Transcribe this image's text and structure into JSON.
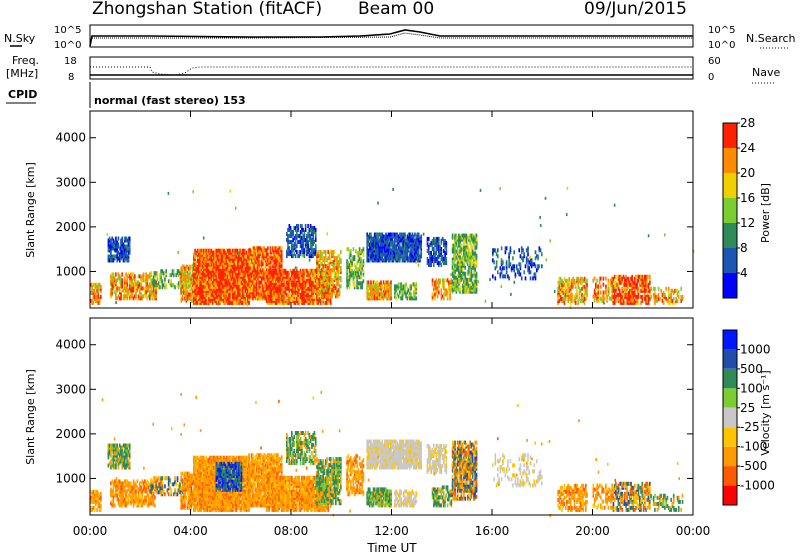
{
  "header": {
    "station": "Zhongshan Station (fitACF)",
    "beam": "Beam 00",
    "date": "09/Jun/2015"
  },
  "summary_panels": {
    "nsky_label": "N.Sky",
    "nsky_ticks": [
      "10^5",
      "10^0"
    ],
    "nsearch_label": "N.Search",
    "nsearch_ticks": [
      "10^5",
      "10^0"
    ],
    "freq_label_1": "Freq.",
    "freq_label_2": "[MHz]",
    "freq_ticks": [
      "18",
      "8"
    ],
    "nave_label": "Nave",
    "nave_ticks": [
      "60",
      "0"
    ],
    "cpid_label": "CPID",
    "cpid_value": "normal (fast stereo) 153"
  },
  "chart_data": [
    {
      "type": "heatmap",
      "name": "power",
      "ylabel": "Slant Range [km]",
      "yticks": [
        1000,
        2000,
        3000,
        4000
      ],
      "ylim": [
        180,
        4600
      ],
      "xlim": [
        0,
        24
      ],
      "colorbar_label": "Power [dB]",
      "colorbar_ticks": [
        "4",
        "8",
        "12",
        "16",
        "20",
        "24",
        "28"
      ],
      "colors": [
        "#0000ff",
        "#1a56b4",
        "#2e8b57",
        "#7ccd32",
        "#f0d000",
        "#ff8c00",
        "#ff2200"
      ]
    },
    {
      "type": "heatmap",
      "name": "velocity",
      "ylabel": "Slant Range [km]",
      "yticks": [
        1000,
        2000,
        3000,
        4000
      ],
      "ylim": [
        180,
        4600
      ],
      "xlim": [
        0,
        24
      ],
      "xlabel": "Time UT",
      "xticks": [
        "00:00",
        "04:00",
        "08:00",
        "12:00",
        "16:00",
        "20:00",
        "00:00"
      ],
      "colorbar_label": "Velocity [m s⁻¹]",
      "colorbar_ticks": [
        "-1000",
        "-500",
        "-100",
        "-25",
        "25",
        "100",
        "500",
        "1000"
      ],
      "colors": [
        "#ff0000",
        "#ff5a00",
        "#ff9a00",
        "#ffc400",
        "#c8c8c8",
        "#7ccd32",
        "#2e8b57",
        "#1f4fa8",
        "#0018ff"
      ]
    }
  ],
  "patches": [
    {
      "t0": 0.0,
      "t1": 0.4,
      "r0": 250,
      "r1": 700,
      "p": "m",
      "v": "o",
      "d": 0.6
    },
    {
      "t0": 0.7,
      "t1": 1.6,
      "r0": 1200,
      "r1": 1700,
      "p": "b",
      "v": "g",
      "d": 0.6
    },
    {
      "t0": 0.8,
      "t1": 2.6,
      "r0": 350,
      "r1": 900,
      "p": "m",
      "v": "o",
      "d": 0.5
    },
    {
      "t0": 2.4,
      "t1": 4.0,
      "r0": 600,
      "r1": 1000,
      "p": "g",
      "v": "m",
      "d": 0.35
    },
    {
      "t0": 3.6,
      "t1": 5.2,
      "r0": 300,
      "r1": 1100,
      "p": "m",
      "v": "o",
      "d": 0.6
    },
    {
      "t0": 4.1,
      "t1": 6.3,
      "r0": 250,
      "r1": 1450,
      "p": "h",
      "v": "o",
      "d": 0.85
    },
    {
      "t0": 5.0,
      "t1": 6.0,
      "r0": 700,
      "r1": 1300,
      "p": "h",
      "v": "b",
      "d": 0.6
    },
    {
      "t0": 6.3,
      "t1": 7.6,
      "r0": 350,
      "r1": 1500,
      "p": "h",
      "v": "o",
      "d": 0.7
    },
    {
      "t0": 7.0,
      "t1": 9.6,
      "r0": 250,
      "r1": 1000,
      "p": "h",
      "v": "o",
      "d": 0.75
    },
    {
      "t0": 7.8,
      "t1": 9.0,
      "r0": 1300,
      "r1": 2000,
      "p": "b",
      "v": "g",
      "d": 0.45
    },
    {
      "t0": 9.0,
      "t1": 10.0,
      "r0": 400,
      "r1": 1400,
      "p": "m",
      "v": "g",
      "d": 0.55
    },
    {
      "t0": 10.2,
      "t1": 10.9,
      "r0": 600,
      "r1": 1500,
      "p": "g",
      "v": "o",
      "d": 0.45
    },
    {
      "t0": 11.0,
      "t1": 13.2,
      "r0": 1200,
      "r1": 1800,
      "p": "b",
      "v": "s",
      "d": 0.8
    },
    {
      "t0": 11.0,
      "t1": 12.0,
      "r0": 350,
      "r1": 750,
      "p": "m",
      "v": "g",
      "d": 0.75
    },
    {
      "t0": 12.1,
      "t1": 13.0,
      "r0": 350,
      "r1": 700,
      "p": "g",
      "v": "s",
      "d": 0.5
    },
    {
      "t0": 13.4,
      "t1": 14.2,
      "r0": 1100,
      "r1": 1700,
      "p": "b",
      "v": "s",
      "d": 0.5
    },
    {
      "t0": 13.6,
      "t1": 14.4,
      "r0": 350,
      "r1": 800,
      "p": "m",
      "v": "g",
      "d": 0.45
    },
    {
      "t0": 14.4,
      "t1": 15.4,
      "r0": 500,
      "r1": 1800,
      "p": "g",
      "v": "m",
      "d": 0.6
    },
    {
      "t0": 16.0,
      "t1": 18.0,
      "r0": 800,
      "r1": 1500,
      "p": "b",
      "v": "s",
      "d": 0.2
    },
    {
      "t0": 18.6,
      "t1": 19.8,
      "r0": 250,
      "r1": 800,
      "p": "m",
      "v": "o",
      "d": 0.45
    },
    {
      "t0": 20.0,
      "t1": 20.8,
      "r0": 300,
      "r1": 800,
      "p": "m",
      "v": "o",
      "d": 0.3
    },
    {
      "t0": 20.8,
      "t1": 22.3,
      "r0": 250,
      "r1": 850,
      "p": "h",
      "v": "m",
      "d": 0.55
    },
    {
      "t0": 22.3,
      "t1": 23.6,
      "r0": 250,
      "r1": 600,
      "p": "m",
      "v": "g",
      "d": 0.3
    }
  ]
}
